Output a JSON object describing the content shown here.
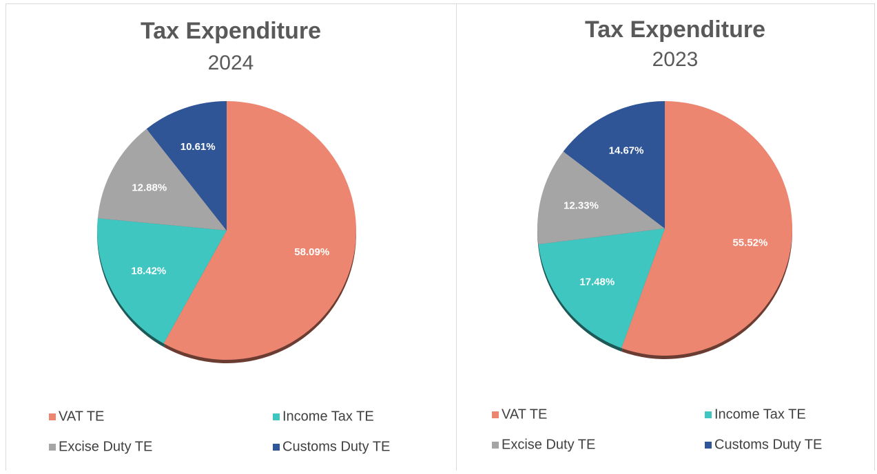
{
  "chart_data": [
    {
      "type": "pie",
      "title": "Tax Expenditure",
      "subtitle": "2024",
      "categories": [
        "VAT TE",
        "Income Tax TE",
        "Excise Duty TE",
        "Customs Duty TE"
      ],
      "values": [
        58.09,
        18.42,
        12.88,
        10.61
      ],
      "value_labels": [
        "58.09%",
        "18.42%",
        "12.88%",
        "10.61%"
      ],
      "colors": [
        "#ed8670",
        "#3fc6c1",
        "#a5a5a5",
        "#2f5597"
      ]
    },
    {
      "type": "pie",
      "title": "Tax Expenditure",
      "subtitle": "2023",
      "categories": [
        "VAT TE",
        "Income Tax TE",
        "Excise Duty TE",
        "Customs Duty TE"
      ],
      "values": [
        55.52,
        17.48,
        12.33,
        14.67
      ],
      "value_labels": [
        "55.52%",
        "17.48%",
        "12.33%",
        "14.67%"
      ],
      "colors": [
        "#ed8670",
        "#3fc6c1",
        "#a5a5a5",
        "#2f5597"
      ]
    }
  ]
}
